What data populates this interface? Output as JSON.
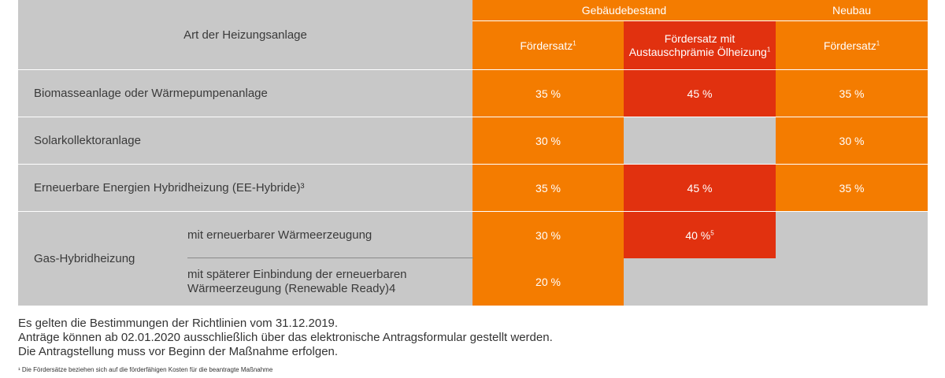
{
  "header": {
    "col_type": "Art der Heizungsanlage",
    "group_existing": "Gebäudebestand",
    "group_new": "Neubau",
    "rate": "Fördersatz",
    "rate_sup": "1",
    "rate_bonus_line1": "Fördersatz mit",
    "rate_bonus_line2": "Austauschprämie Ölheizung",
    "rate_bonus_sup": "1",
    "rate_new": "Fördersatz",
    "rate_new_sup": "1"
  },
  "rows": [
    {
      "label": "Biomasseanlage oder Wärmepumpenanlage",
      "existing": "35 %",
      "bonus": "45 %",
      "new": "35 %"
    },
    {
      "label": "Solarkollektoranlage",
      "existing": "30 %",
      "bonus": "",
      "new": "30 %"
    },
    {
      "label": "Erneuerbare Energien Hybridheizung (EE-Hybride)³",
      "existing": "35 %",
      "bonus": "45 %",
      "new": "35 %"
    }
  ],
  "gas": {
    "label": "Gas-Hybridheizung",
    "sub1_label": "mit erneuerbarer Wärmeerzeugung",
    "sub1_existing": "30 %",
    "sub1_bonus": "40 %",
    "sub1_bonus_sup": "5",
    "sub2_label_line1": "mit späterer Einbindung der erneuerbaren",
    "sub2_label_line2": "Wärmeerzeugung (Renewable Ready)4",
    "sub2_existing": "20 %"
  },
  "notes": [
    "Es gelten die Bestimmungen der Richtlinien vom 31.12.2019.",
    "Anträge können ab 02.01.2020 ausschließlich über das elektronische Antragsformular gestellt werden.",
    "Die Antragstellung muss vor Beginn der Maßnahme erfolgen."
  ],
  "footnote": "¹ Die Fördersätze beziehen sich auf die förderfähigen Kosten für die beantragte Maßnahme",
  "colors": {
    "orange": "#f47c00",
    "red": "#e1310f",
    "grey": "#c8c8c8"
  }
}
